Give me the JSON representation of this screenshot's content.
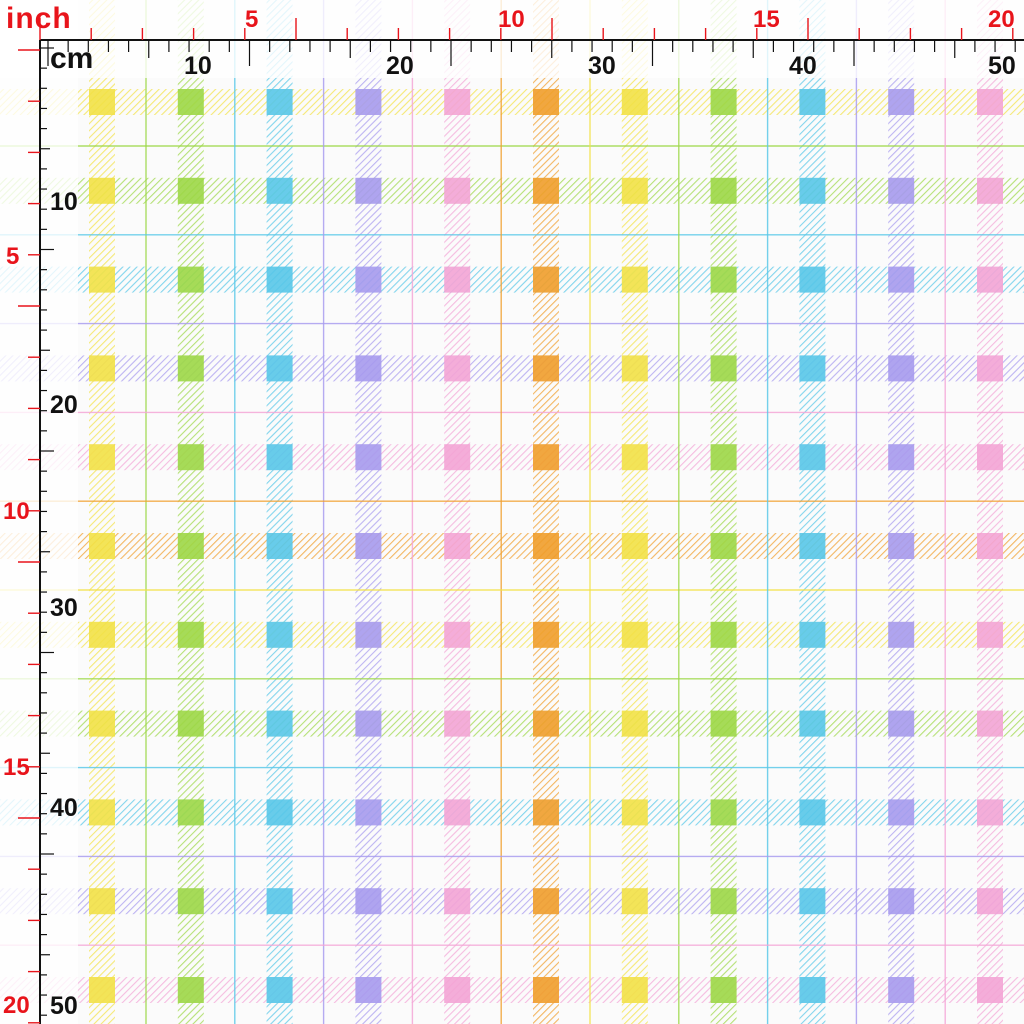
{
  "ruler": {
    "inch_unit": "inch",
    "cm_unit": "cm",
    "inch_top_labels": [
      "5",
      "10",
      "15",
      "20"
    ],
    "cm_top_labels": [
      "10",
      "20",
      "30",
      "40",
      "50"
    ],
    "inch_left_labels": [
      "5",
      "10",
      "15",
      "20"
    ],
    "cm_left_labels": [
      "10",
      "20",
      "30",
      "40",
      "50"
    ],
    "inch_color": "#e8141b",
    "cm_color": "#111111"
  },
  "fabric": {
    "pattern": "pastel-plaid",
    "stripe_colors": [
      "#f2e24a",
      "#9ed84a",
      "#5bc8e8",
      "#a89cee",
      "#f3a6d6",
      "#f0a030",
      "#f2e24a",
      "#9ed84a",
      "#5bc8e8",
      "#a89cee",
      "#f3a6d6"
    ],
    "background_color": "#fbfbfb"
  }
}
